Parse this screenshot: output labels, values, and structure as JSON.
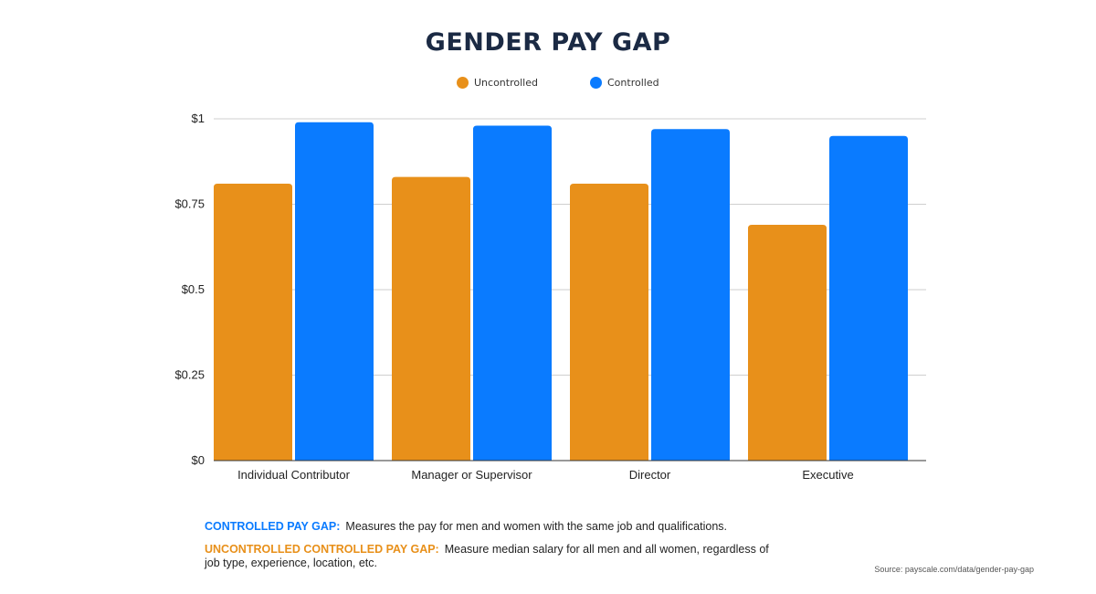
{
  "colors": {
    "uncontrolled": "#E8901A",
    "controlled": "#0A7BFF",
    "title": "#1B2A44"
  },
  "legend": {
    "items": [
      {
        "label": "Uncontrolled",
        "color": "#E8901A"
      },
      {
        "label": "Controlled",
        "color": "#0A7BFF"
      }
    ]
  },
  "chart_data": {
    "type": "bar",
    "title": "GENDER PAY GAP",
    "categories": [
      "Individual Contributor",
      "Manager or Supervisor",
      "Director",
      "Executive"
    ],
    "series": [
      {
        "name": "Uncontrolled",
        "values": [
          0.81,
          0.83,
          0.81,
          0.69
        ]
      },
      {
        "name": "Controlled",
        "values": [
          0.99,
          0.98,
          0.97,
          0.95
        ]
      }
    ],
    "xlabel": "",
    "ylabel": "",
    "ylim": [
      0,
      1
    ],
    "yticks": [
      0,
      0.25,
      0.5,
      0.75,
      1
    ],
    "ytick_labels": [
      "$0",
      "$0.25",
      "$0.5",
      "$0.75",
      "$1"
    ],
    "grid": true,
    "legend_position": "top-center"
  },
  "notes": {
    "controlled": {
      "heading": "CONTROLLED PAY GAP:",
      "text": "Measures the pay for men and women with the same job and qualifications."
    },
    "uncontrolled": {
      "heading": "UNCONTROLLED CONTROLLED PAY GAP:",
      "text": "Measure median salary for all men and all women, regardless of job type, experience, location, etc."
    }
  },
  "source": "Source: payscale.com/data/gender-pay-gap"
}
